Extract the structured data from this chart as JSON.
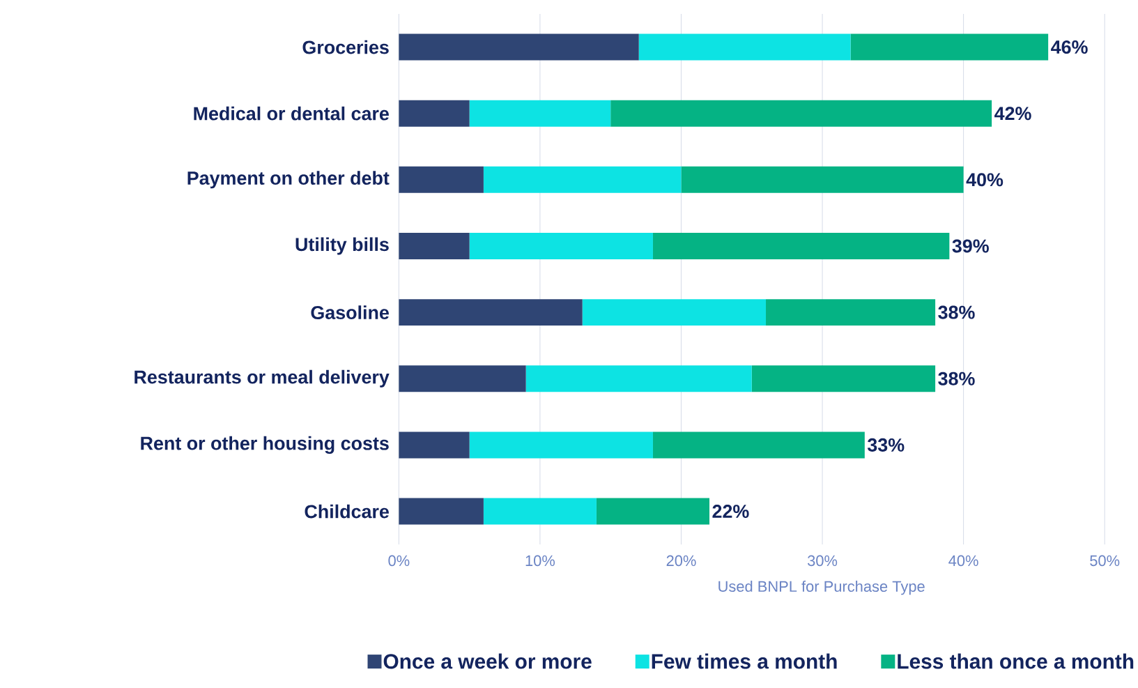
{
  "chart_data": {
    "type": "bar",
    "orientation": "horizontal",
    "stacked": true,
    "categories": [
      "Groceries",
      "Medical or dental care",
      "Payment on other debt",
      "Utility bills",
      "Gasoline",
      "Restaurants or meal delivery",
      "Rent or other housing costs",
      "Childcare"
    ],
    "series": [
      {
        "name": "Once a week or more",
        "color": "#2f4574",
        "values": [
          17,
          5,
          6,
          5,
          13,
          9,
          5,
          6
        ]
      },
      {
        "name": "Few times a month",
        "color": "#0de3e3",
        "values": [
          15,
          10,
          14,
          13,
          13,
          16,
          13,
          8
        ]
      },
      {
        "name": "Less than once a month",
        "color": "#05b384",
        "values": [
          14,
          27,
          20,
          21,
          12,
          13,
          15,
          8
        ]
      }
    ],
    "totals": [
      "46%",
      "42%",
      "40%",
      "39%",
      "38%",
      "38%",
      "33%",
      "22%"
    ],
    "xlabel": "Used BNPL for Purchase Type",
    "xlim": [
      0,
      50
    ],
    "xticks": [
      {
        "value": 0,
        "label": "0%"
      },
      {
        "value": 10,
        "label": "10%"
      },
      {
        "value": 20,
        "label": "20%"
      },
      {
        "value": 30,
        "label": "30%"
      },
      {
        "value": 40,
        "label": "40%"
      },
      {
        "value": 50,
        "label": "50%"
      }
    ],
    "grid": "x",
    "legend": "bottom"
  }
}
